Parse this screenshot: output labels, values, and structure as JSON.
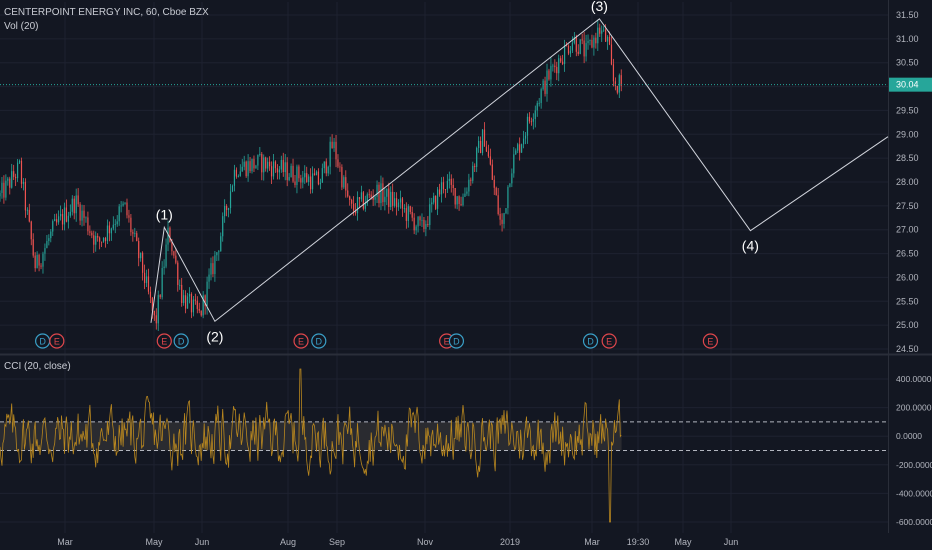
{
  "header": {
    "symbol_line": "CENTERPOINT ENERGY INC, 60, Cboe BZX",
    "volume_label": "Vol (20)"
  },
  "cci_panel": {
    "label": "CCI (20, close)"
  },
  "colors": {
    "background": "#131722",
    "grid": "#1e2230",
    "up_candle": "#26a69a",
    "down_candle": "#ef5350",
    "wave_line": "#d1d4dc",
    "price_line": "#26a69a",
    "cci_line": "#b8871f",
    "cci_band": "#2a2b30",
    "axis_text": "#b2b5be",
    "event_dividend": "#3aa0c8",
    "event_earnings": "#e0474c"
  },
  "chart_data": [
    {
      "type": "candlestick",
      "title": "CENTERPOINT ENERGY INC, 60, Cboe BZX",
      "current_price": 30.04,
      "current_price_label": "30.04",
      "y_ticks": [
        "31.50",
        "31.00",
        "30.50",
        "30.00",
        "29.50",
        "29.00",
        "28.50",
        "28.00",
        "27.50",
        "27.00",
        "26.50",
        "26.00",
        "25.50",
        "25.00",
        "24.50"
      ],
      "ylim": [
        24.45,
        31.75
      ],
      "x_ticks": [
        "Mar",
        "May",
        "Jun",
        "Aug",
        "Sep",
        "Nov",
        "2019",
        "Mar",
        "19:30",
        "May",
        "Jun"
      ],
      "price_path": [
        {
          "t": 0,
          "p": 27.7
        },
        {
          "t": 0.022,
          "p": 28.3
        },
        {
          "t": 0.04,
          "p": 26.2
        },
        {
          "t": 0.06,
          "p": 27.0
        },
        {
          "t": 0.085,
          "p": 27.6
        },
        {
          "t": 0.11,
          "p": 26.7
        },
        {
          "t": 0.14,
          "p": 27.5
        },
        {
          "t": 0.16,
          "p": 26.2
        },
        {
          "t": 0.175,
          "p": 25.0
        },
        {
          "t": 0.19,
          "p": 27.0
        },
        {
          "t": 0.205,
          "p": 25.6
        },
        {
          "t": 0.225,
          "p": 25.2
        },
        {
          "t": 0.245,
          "p": 26.6
        },
        {
          "t": 0.265,
          "p": 28.3
        },
        {
          "t": 0.295,
          "p": 28.4
        },
        {
          "t": 0.325,
          "p": 28.2
        },
        {
          "t": 0.36,
          "p": 28.0
        },
        {
          "t": 0.375,
          "p": 28.8
        },
        {
          "t": 0.395,
          "p": 27.4
        },
        {
          "t": 0.425,
          "p": 27.8
        },
        {
          "t": 0.45,
          "p": 27.5
        },
        {
          "t": 0.475,
          "p": 27.0
        },
        {
          "t": 0.5,
          "p": 28.0
        },
        {
          "t": 0.52,
          "p": 27.6
        },
        {
          "t": 0.545,
          "p": 29.0
        },
        {
          "t": 0.555,
          "p": 28.0
        },
        {
          "t": 0.565,
          "p": 27.0
        },
        {
          "t": 0.575,
          "p": 28.3
        },
        {
          "t": 0.6,
          "p": 29.5
        },
        {
          "t": 0.62,
          "p": 30.3
        },
        {
          "t": 0.645,
          "p": 31.0
        },
        {
          "t": 0.66,
          "p": 30.7
        },
        {
          "t": 0.675,
          "p": 31.2
        },
        {
          "t": 0.685,
          "p": 30.9
        },
        {
          "t": 0.69,
          "p": 30.1
        },
        {
          "t": 0.7,
          "p": 30.0
        }
      ],
      "elliott_wave": {
        "points": [
          {
            "label": "(1)",
            "t": 0.185,
            "p": 27.05
          },
          {
            "label": "(2)",
            "t": 0.242,
            "p": 25.08
          },
          {
            "label": "(3)",
            "t": 0.675,
            "p": 31.42
          },
          {
            "label": "(4)",
            "t": 0.845,
            "p": 26.98
          }
        ],
        "extension_end": {
          "t": 1.0,
          "p": 28.95
        },
        "wave_start": {
          "t": 0.17,
          "p": 25.05
        }
      },
      "events": [
        {
          "label": "D",
          "kind": "dividend",
          "t": 0.048
        },
        {
          "label": "E",
          "kind": "earnings",
          "t": 0.064
        },
        {
          "label": "E",
          "kind": "earnings",
          "t": 0.185
        },
        {
          "label": "D",
          "kind": "dividend",
          "t": 0.204
        },
        {
          "label": "E",
          "kind": "earnings",
          "t": 0.339
        },
        {
          "label": "D",
          "kind": "dividend",
          "t": 0.359
        },
        {
          "label": "E",
          "kind": "earnings",
          "t": 0.503
        },
        {
          "label": "D",
          "kind": "dividend",
          "t": 0.514
        },
        {
          "label": "D",
          "kind": "dividend",
          "t": 0.665
        },
        {
          "label": "E",
          "kind": "earnings",
          "t": 0.686
        },
        {
          "label": "E",
          "kind": "earnings",
          "t": 0.8
        }
      ]
    },
    {
      "type": "line",
      "title": "CCI (20, close)",
      "y_ticks": [
        "400.0000",
        "200.0000",
        "0.0000",
        "-200.0000",
        "-400.0000",
        "-600.0000"
      ],
      "ylim": [
        -670,
        520
      ],
      "band": [
        -100,
        100
      ]
    }
  ]
}
